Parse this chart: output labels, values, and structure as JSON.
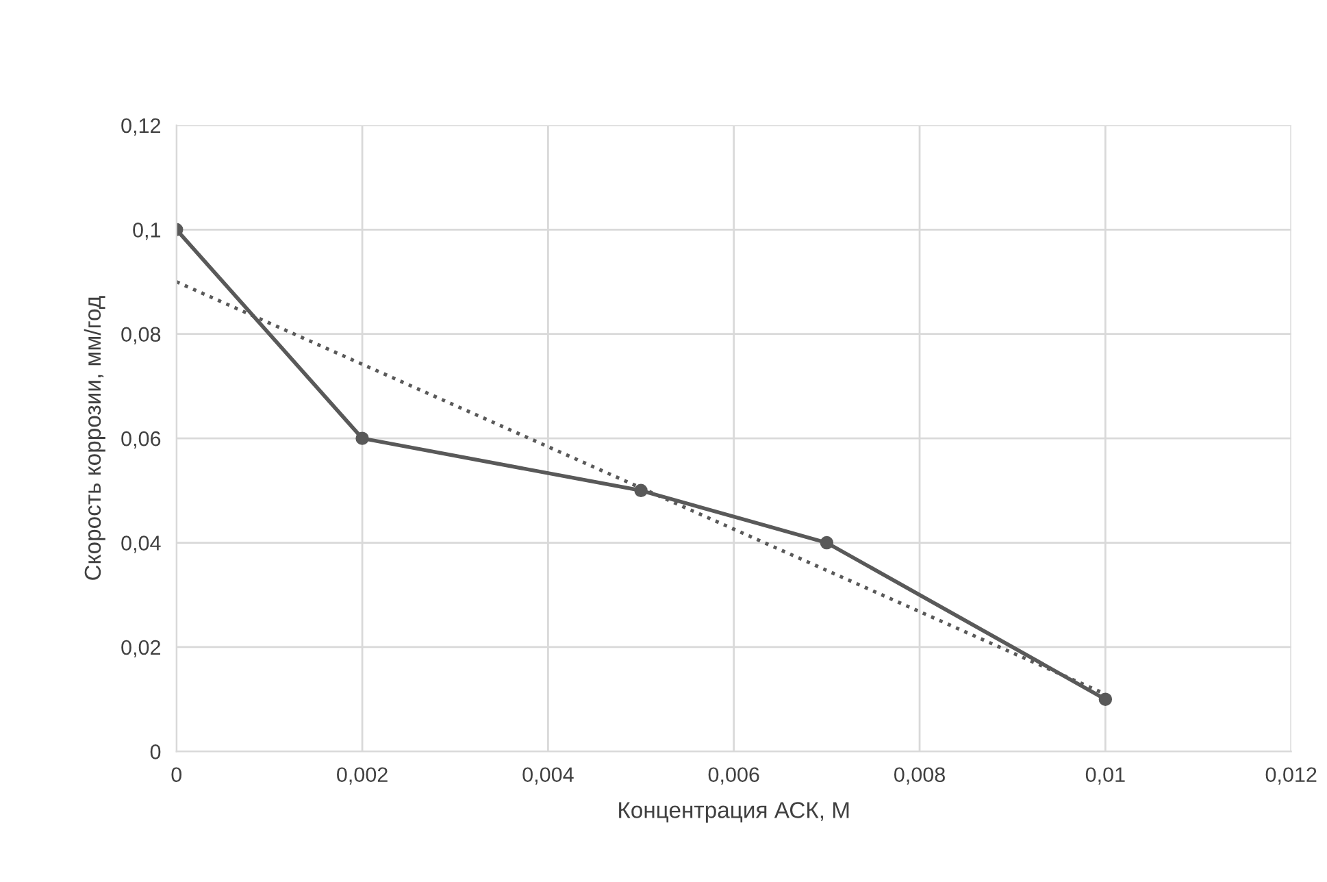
{
  "chart_data": {
    "type": "line",
    "xlabel": "Концентрация АСК, М",
    "ylabel": "Скорость коррозии, мм/год",
    "x": [
      0,
      0.002,
      0.005,
      0.007,
      0.01
    ],
    "series": [
      {
        "color": "#595959",
        "values": [
          0.1,
          0.06,
          0.05,
          0.04,
          0.01
        ],
        "marker": "circle",
        "line_style": "solid"
      },
      {
        "color": "#595959",
        "x": [
          0,
          0.01
        ],
        "values": [
          0.09,
          0.011
        ],
        "marker": "none",
        "line_style": "dotted"
      }
    ],
    "xlim": [
      0,
      0.012
    ],
    "xticks": [
      0,
      {
        "value": 0.002,
        "label": "0,002"
      },
      {
        "value": 0.004,
        "label": "0,004"
      },
      {
        "value": 0.006,
        "label": "0,006"
      },
      {
        "value": 0.008,
        "label": "0,008"
      },
      {
        "value": 0.01,
        "label": "0,01"
      },
      {
        "value": 0.012,
        "label": "0,012"
      }
    ],
    "ylim": [
      0,
      0.12
    ],
    "yticks": [
      0,
      {
        "value": 0.02,
        "label": "0,02"
      },
      {
        "value": 0.04,
        "label": "0,04"
      },
      {
        "value": 0.06,
        "label": "0,06"
      },
      {
        "value": 0.08,
        "label": "0,08"
      },
      {
        "value": 0.1,
        "label": "0,1"
      },
      {
        "value": 0.12,
        "label": "0,12"
      }
    ],
    "grid": true
  }
}
